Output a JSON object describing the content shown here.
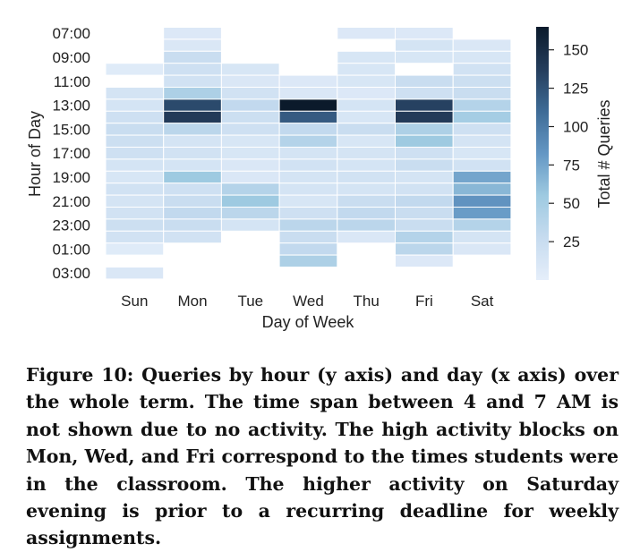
{
  "chart_data": {
    "type": "heatmap",
    "xlabel": "Day of Week",
    "ylabel": "Hour of Day",
    "x_categories": [
      "Sun",
      "Mon",
      "Tue",
      "Wed",
      "Thu",
      "Fri",
      "Sat"
    ],
    "y_categories": [
      "07:00",
      "08:00",
      "09:00",
      "10:00",
      "11:00",
      "12:00",
      "13:00",
      "14:00",
      "15:00",
      "16:00",
      "17:00",
      "18:00",
      "19:00",
      "20:00",
      "21:00",
      "22:00",
      "23:00",
      "00:00",
      "01:00",
      "02:00",
      "03:00"
    ],
    "y_tick_labels": [
      "07:00",
      "09:00",
      "11:00",
      "13:00",
      "15:00",
      "17:00",
      "19:00",
      "21:00",
      "23:00",
      "01:00",
      "03:00"
    ],
    "values": [
      [
        null,
        8,
        null,
        null,
        8,
        8,
        null
      ],
      [
        null,
        10,
        null,
        null,
        null,
        15,
        10
      ],
      [
        null,
        25,
        null,
        null,
        12,
        12,
        12
      ],
      [
        5,
        20,
        12,
        null,
        12,
        null,
        18
      ],
      [
        null,
        18,
        10,
        8,
        12,
        25,
        22
      ],
      [
        15,
        45,
        18,
        10,
        8,
        20,
        25
      ],
      [
        15,
        130,
        30,
        165,
        15,
        135,
        40
      ],
      [
        20,
        140,
        22,
        120,
        12,
        140,
        50
      ],
      [
        25,
        35,
        20,
        30,
        25,
        45,
        20
      ],
      [
        22,
        15,
        12,
        40,
        12,
        55,
        15
      ],
      [
        20,
        18,
        12,
        15,
        15,
        20,
        12
      ],
      [
        15,
        15,
        10,
        18,
        15,
        25,
        18
      ],
      [
        12,
        55,
        10,
        15,
        18,
        15,
        75
      ],
      [
        18,
        20,
        40,
        15,
        15,
        18,
        65
      ],
      [
        15,
        25,
        55,
        12,
        25,
        30,
        85
      ],
      [
        18,
        30,
        35,
        20,
        30,
        25,
        80
      ],
      [
        22,
        25,
        15,
        35,
        35,
        25,
        40
      ],
      [
        18,
        18,
        null,
        25,
        10,
        40,
        15
      ],
      [
        5,
        null,
        null,
        30,
        null,
        35,
        10
      ],
      [
        null,
        null,
        null,
        45,
        null,
        8,
        null
      ],
      [
        10,
        null,
        null,
        null,
        null,
        null,
        null
      ]
    ],
    "colorbar": {
      "label": "Total # Queries",
      "ticks": [
        25,
        50,
        75,
        100,
        125,
        150
      ],
      "range": [
        0,
        165
      ]
    },
    "colormap_stops": [
      "#e5eefa",
      "#c6dbef",
      "#9ecae1",
      "#6497c4",
      "#3e6b96",
      "#243d5c",
      "#0b1a2b"
    ],
    "grid": false
  },
  "caption": "Figure 10: Queries by hour (y axis) and day (x axis) over the whole term. The time span between 4 and 7 AM is not shown due to no activity. The high activity blocks on Mon, Wed, and Fri correspond to the times students were in the classroom. The higher activity on Saturday evening is prior to a recurring deadline for weekly assignments."
}
